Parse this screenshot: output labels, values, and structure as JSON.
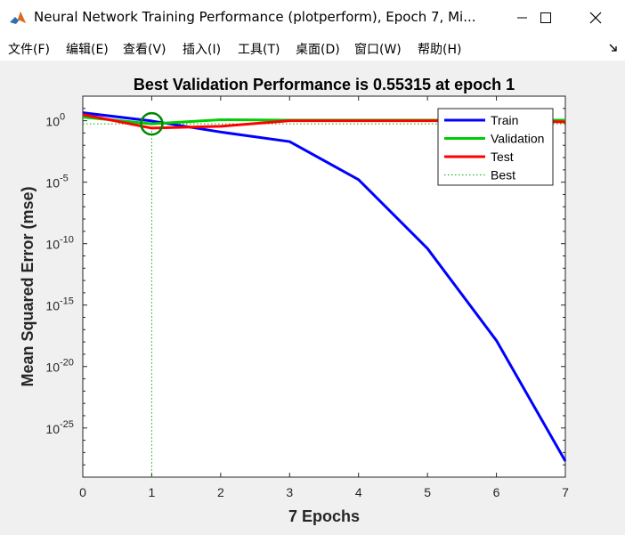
{
  "window": {
    "title": "Neural Network Training Performance (plotperform), Epoch 7, Mi..."
  },
  "menu": [
    {
      "label": "文件(F)"
    },
    {
      "label": "编辑(E)"
    },
    {
      "label": "查看(V)"
    },
    {
      "label": "插入(I)"
    },
    {
      "label": "工具(T)"
    },
    {
      "label": "桌面(D)"
    },
    {
      "label": "窗口(W)"
    },
    {
      "label": "帮助(H)"
    }
  ],
  "icons": {
    "app": "matlab-icon",
    "minimize": "minimize-icon",
    "maximize": "maximize-icon",
    "close": "close-icon",
    "dock": "dock-arrow-icon"
  },
  "chart_data": {
    "type": "line",
    "title": "Best Validation Performance is 0.55315 at epoch 1",
    "xlabel": "7 Epochs",
    "ylabel": "Mean Squared Error  (mse)",
    "xlim": [
      0,
      7
    ],
    "ylim_log10": [
      -29,
      2
    ],
    "yscale": "log",
    "xticks": [
      "0",
      "1",
      "2",
      "3",
      "4",
      "5",
      "6",
      "7"
    ],
    "yticks": [
      {
        "base": "10",
        "exp": "0",
        "log10": 0
      },
      {
        "base": "10",
        "exp": "-5",
        "log10": -5
      },
      {
        "base": "10",
        "exp": "-10",
        "log10": -10
      },
      {
        "base": "10",
        "exp": "-15",
        "log10": -15
      },
      {
        "base": "10",
        "exp": "-20",
        "log10": -20
      },
      {
        "base": "10",
        "exp": "-25",
        "log10": -25
      }
    ],
    "x": [
      0,
      1,
      2,
      3,
      4,
      5,
      6,
      7
    ],
    "series": [
      {
        "name": "Train",
        "color": "#0000ff",
        "values": [
          4.5,
          0.95,
          0.12,
          0.02,
          1.6e-05,
          4e-11,
          1.3e-18,
          2e-28
        ]
      },
      {
        "name": "Validation",
        "color": "#00cc00",
        "values": [
          2.0,
          0.55315,
          1.2,
          1.1,
          1.1,
          1.1,
          1.1,
          1.1
        ]
      },
      {
        "name": "Test",
        "color": "#ff0000",
        "values": [
          3.2,
          0.25,
          0.35,
          1.0,
          1.0,
          1.0,
          1.0,
          0.8
        ]
      }
    ],
    "best": {
      "name": "Best",
      "epoch": 1,
      "value": 0.55315,
      "color": "#00aa00"
    },
    "legend_position": "top-right",
    "grid": false
  }
}
